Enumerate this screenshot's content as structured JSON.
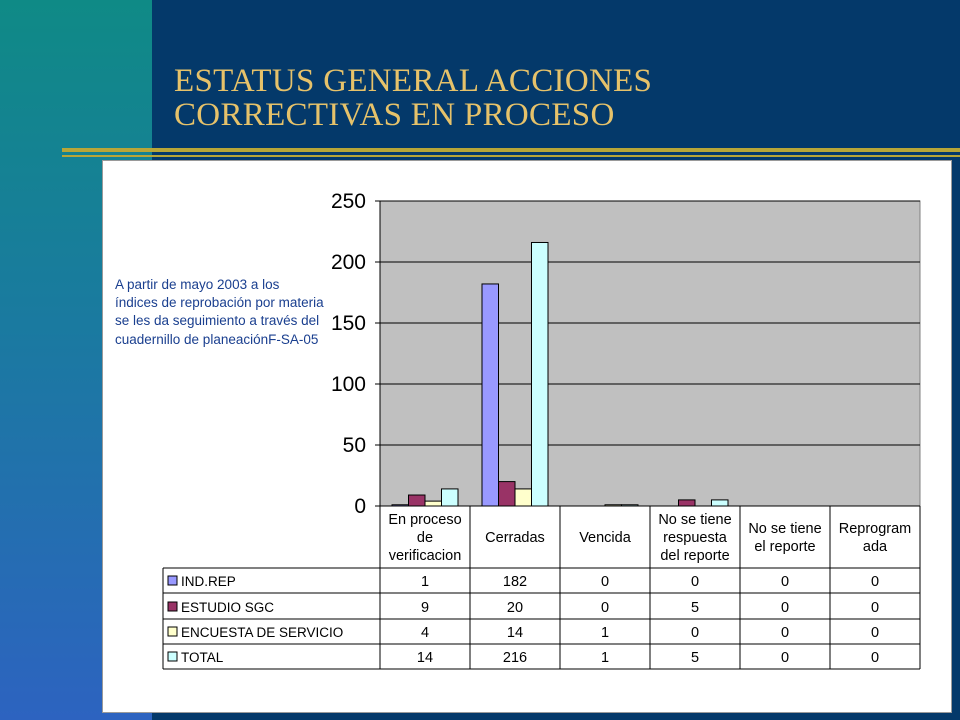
{
  "slide": {
    "title_line1": "ESTATUS GENERAL ACCIONES",
    "title_line2": "CORRECTIVAS EN PROCESO",
    "note": "A partir de mayo 2003 a los índices de reprobación por materia se les da seguimiento a través del cuadernillo de planeaciónF-SA-05"
  },
  "colors": {
    "accent_title": "#e6c26a",
    "plot_bg": "#c0c0c0"
  },
  "chart_data": {
    "type": "bar",
    "title": "",
    "xlabel": "",
    "ylabel": "",
    "ylim": [
      0,
      250
    ],
    "yticks": [
      0,
      50,
      100,
      150,
      200,
      250
    ],
    "grid": true,
    "legend_placement": "table-left",
    "categories": [
      [
        "En proceso",
        "de",
        "verificacion"
      ],
      [
        "Cerradas"
      ],
      [
        "Vencida"
      ],
      [
        "No se tiene",
        "respuesta",
        "del reporte"
      ],
      [
        "No se tiene",
        "el reporte"
      ],
      [
        "Reprogram",
        "ada"
      ]
    ],
    "series": [
      {
        "name": "IND.REP",
        "color": "#9999ff",
        "values": [
          1,
          182,
          0,
          0,
          0,
          0
        ]
      },
      {
        "name": "ESTUDIO SGC",
        "color": "#993366",
        "values": [
          9,
          20,
          0,
          5,
          0,
          0
        ]
      },
      {
        "name": "ENCUESTA DE SERVICIO",
        "color": "#ffffcc",
        "values": [
          4,
          14,
          1,
          0,
          0,
          0
        ]
      },
      {
        "name": "TOTAL",
        "color": "#ccffff",
        "values": [
          14,
          216,
          1,
          5,
          0,
          0
        ]
      }
    ]
  }
}
